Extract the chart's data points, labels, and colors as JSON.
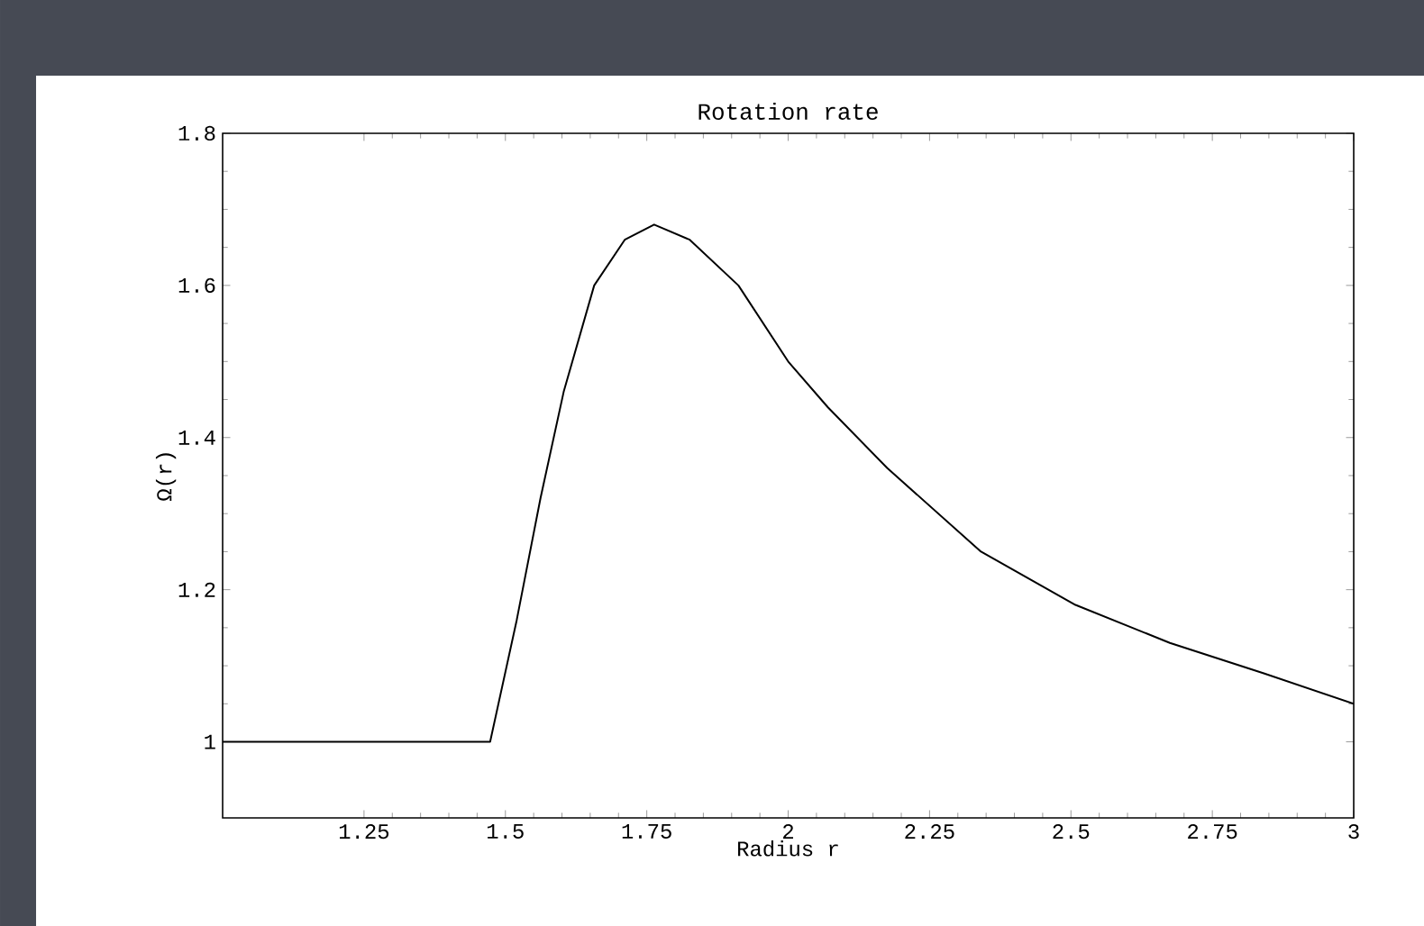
{
  "chart_data": {
    "type": "line",
    "title": "Rotation rate",
    "xlabel": "Radius r",
    "ylabel": "Ω(r)",
    "x": [
      1.0,
      1.473,
      1.52,
      1.562,
      1.603,
      1.657,
      1.711,
      1.763,
      1.826,
      1.912,
      2.0,
      2.07,
      2.175,
      2.341,
      2.508,
      2.675,
      2.841,
      3.0
    ],
    "series": [
      {
        "color": "#000000",
        "values": [
          1.0,
          1.0,
          1.16,
          1.32,
          1.46,
          1.6,
          1.66,
          1.68,
          1.66,
          1.6,
          1.5,
          1.44,
          1.36,
          1.25,
          1.18,
          1.13,
          1.09,
          1.05
        ]
      }
    ],
    "xlim": [
      1,
      3
    ],
    "ylim": [
      0.9,
      1.8
    ],
    "xticks": [
      1.25,
      1.5,
      1.75,
      2,
      2.25,
      2.5,
      2.75,
      3
    ],
    "yticks": [
      1,
      1.2,
      1.4,
      1.6,
      1.8
    ],
    "grid": false,
    "legend": false,
    "marker": "none",
    "line_style": "solid"
  }
}
